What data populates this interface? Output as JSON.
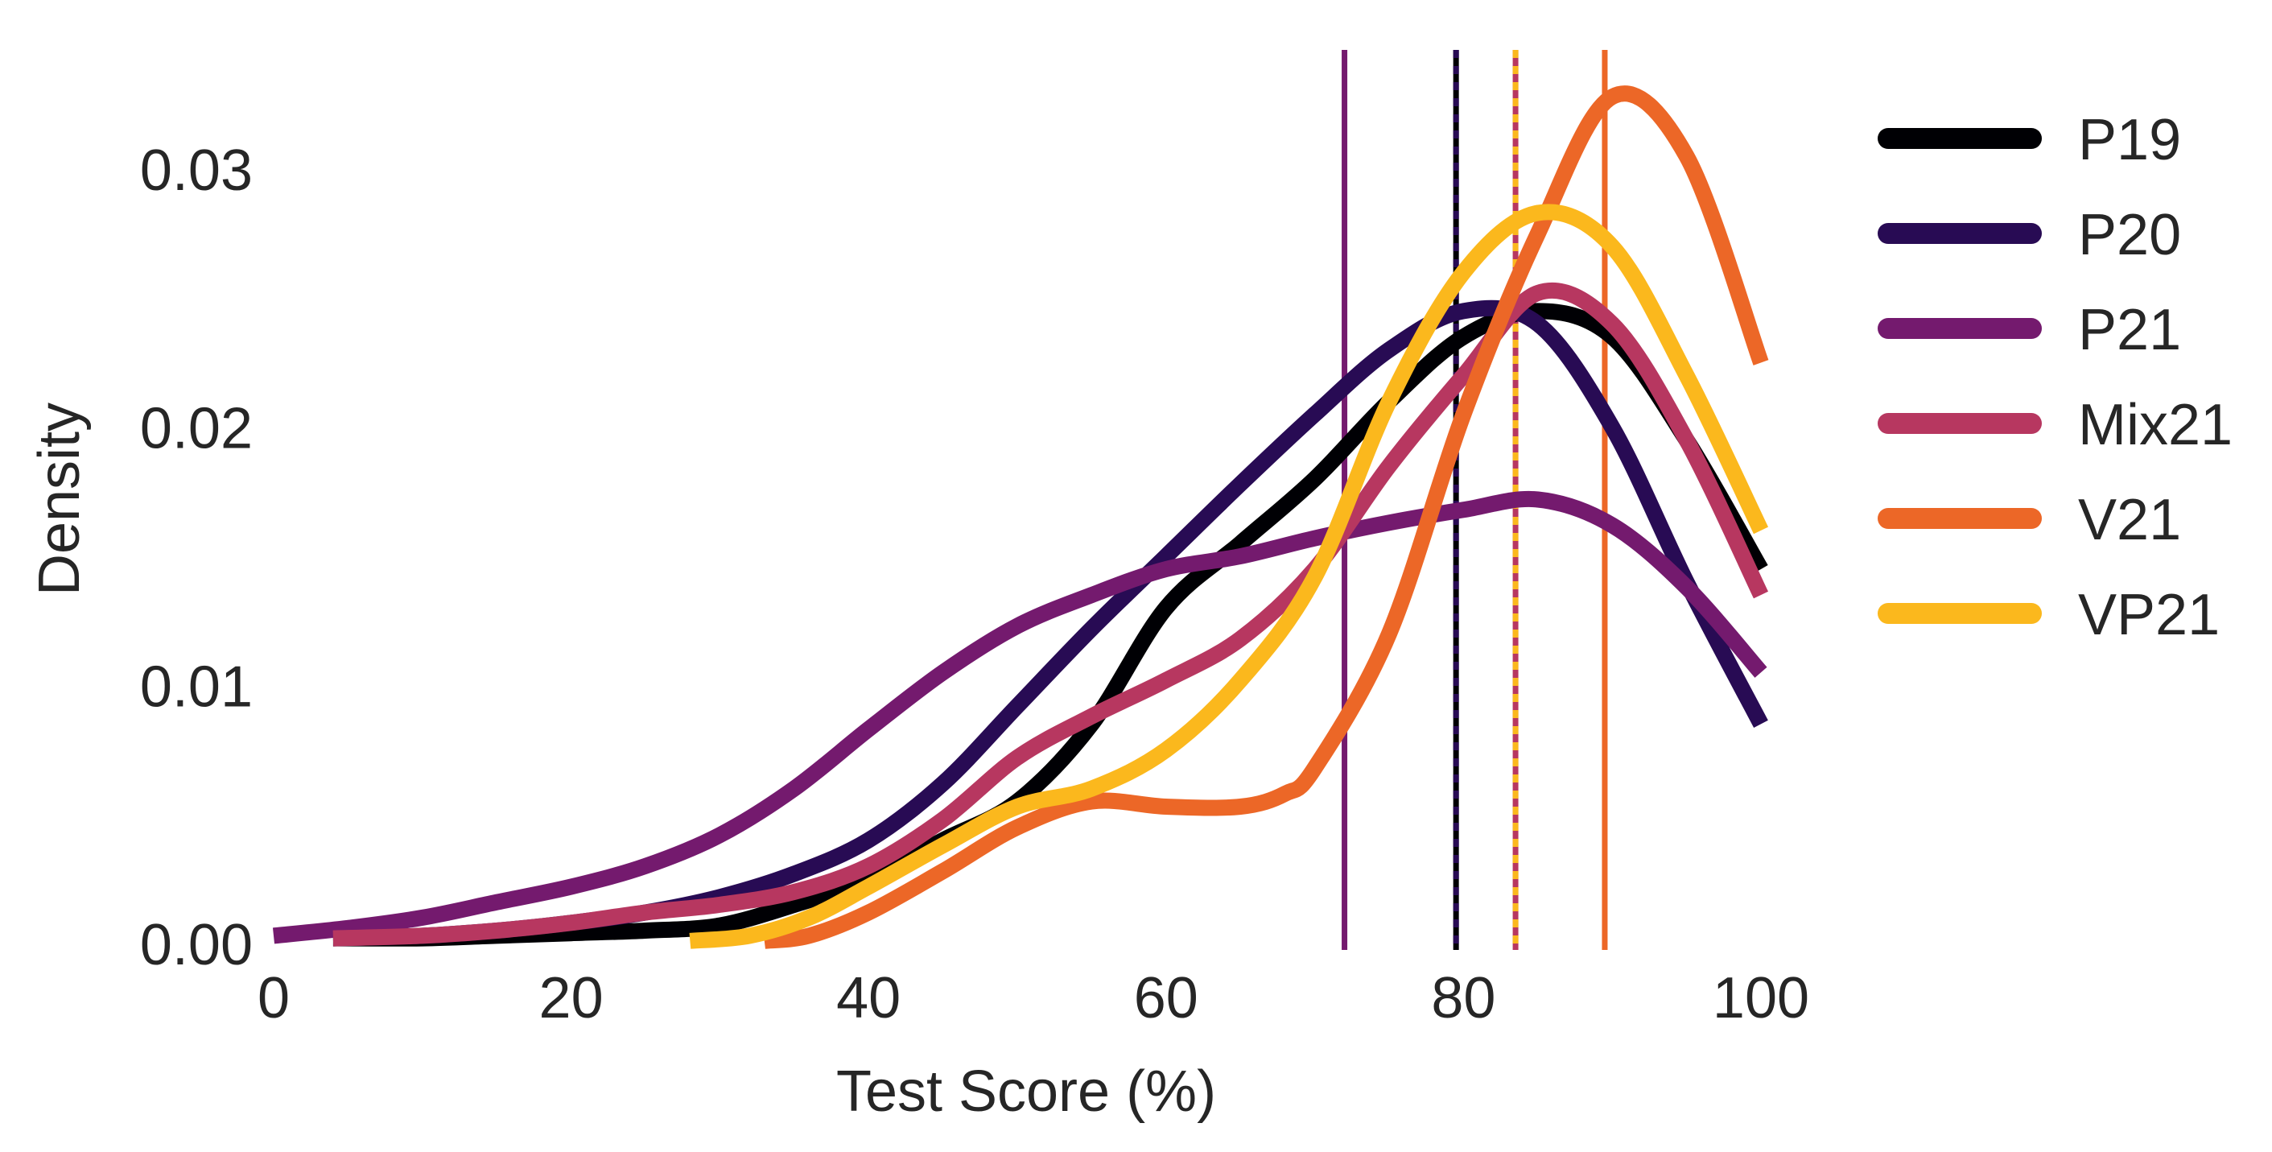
{
  "chart_data": {
    "type": "line",
    "title": "",
    "xlabel": "Test Score (%)",
    "ylabel": "Density",
    "xlim": [
      0,
      100
    ],
    "ylim": [
      0,
      0.03
    ],
    "xticks": [
      0,
      20,
      40,
      60,
      80,
      100
    ],
    "xtick_labels": [
      "0",
      "20",
      "40",
      "60",
      "80",
      "100"
    ],
    "yticks": [
      0,
      0.01,
      0.02,
      0.03
    ],
    "ytick_labels": [
      "0.00",
      "0.01",
      "0.02",
      "0.03"
    ],
    "grid": false,
    "legend_position": "right",
    "series": [
      {
        "name": "P19",
        "color": "#000004",
        "x": [
          4,
          10,
          15,
          20,
          25,
          30,
          35,
          40,
          45,
          50,
          55,
          60,
          65,
          70,
          75,
          80,
          85,
          90,
          95,
          100
        ],
        "y": [
          0.0002,
          0.0002,
          0.0003,
          0.0004,
          0.0005,
          0.0007,
          0.0015,
          0.0025,
          0.004,
          0.0055,
          0.0085,
          0.013,
          0.0155,
          0.018,
          0.021,
          0.0235,
          0.0245,
          0.0235,
          0.0195,
          0.0145
        ],
        "mean": 79.5
      },
      {
        "name": "P20",
        "color": "#280b54",
        "x": [
          4,
          10,
          15,
          20,
          25,
          30,
          35,
          40,
          45,
          50,
          55,
          60,
          65,
          70,
          75,
          80,
          85,
          90,
          95,
          100
        ],
        "y": [
          0.0002,
          0.0003,
          0.0005,
          0.0008,
          0.0012,
          0.0018,
          0.0027,
          0.004,
          0.0062,
          0.0092,
          0.0122,
          0.015,
          0.0178,
          0.0205,
          0.023,
          0.0245,
          0.024,
          0.02,
          0.014,
          0.0085
        ],
        "mean": 79.5
      },
      {
        "name": "P21",
        "color": "#741a6e",
        "x": [
          0,
          5,
          10,
          15,
          20,
          25,
          30,
          35,
          40,
          45,
          50,
          55,
          60,
          65,
          70,
          75,
          80,
          85,
          90,
          95,
          100
        ],
        "y": [
          0.0003,
          0.0006,
          0.001,
          0.0016,
          0.0022,
          0.003,
          0.0042,
          0.006,
          0.0083,
          0.0105,
          0.0123,
          0.0135,
          0.0145,
          0.015,
          0.0157,
          0.0163,
          0.0168,
          0.0172,
          0.0162,
          0.0138,
          0.0105
        ],
        "mean": 72
      },
      {
        "name": "Mix21",
        "color": "#b73760",
        "x": [
          4,
          10,
          15,
          20,
          25,
          30,
          35,
          40,
          45,
          50,
          55,
          60,
          65,
          70,
          75,
          80,
          85,
          90,
          95,
          100
        ],
        "y": [
          0.0002,
          0.0003,
          0.0005,
          0.0008,
          0.0012,
          0.0015,
          0.002,
          0.003,
          0.0048,
          0.0072,
          0.0088,
          0.0102,
          0.0118,
          0.0145,
          0.0185,
          0.022,
          0.0252,
          0.024,
          0.0195,
          0.0135
        ],
        "mean": 83.5
      },
      {
        "name": "V21",
        "color": "#ec6727",
        "x": [
          33,
          36,
          40,
          45,
          50,
          55,
          60,
          65,
          68,
          70,
          75,
          80,
          85,
          90,
          95,
          100
        ],
        "y": [
          0.0001,
          0.0003,
          0.0012,
          0.0028,
          0.0045,
          0.0055,
          0.0053,
          0.0053,
          0.0058,
          0.0068,
          0.012,
          0.0205,
          0.0275,
          0.0328,
          0.0305,
          0.0225
        ],
        "mean": 89.5
      },
      {
        "name": "VP21",
        "color": "#fbb81d",
        "x": [
          28,
          32,
          36,
          40,
          45,
          50,
          55,
          60,
          65,
          70,
          75,
          80,
          85,
          90,
          95,
          100
        ],
        "y": [
          0.0001,
          0.0003,
          0.001,
          0.0022,
          0.0038,
          0.0053,
          0.006,
          0.0075,
          0.0102,
          0.0142,
          0.021,
          0.026,
          0.0283,
          0.027,
          0.022,
          0.016
        ],
        "mean": 83.5
      }
    ]
  }
}
